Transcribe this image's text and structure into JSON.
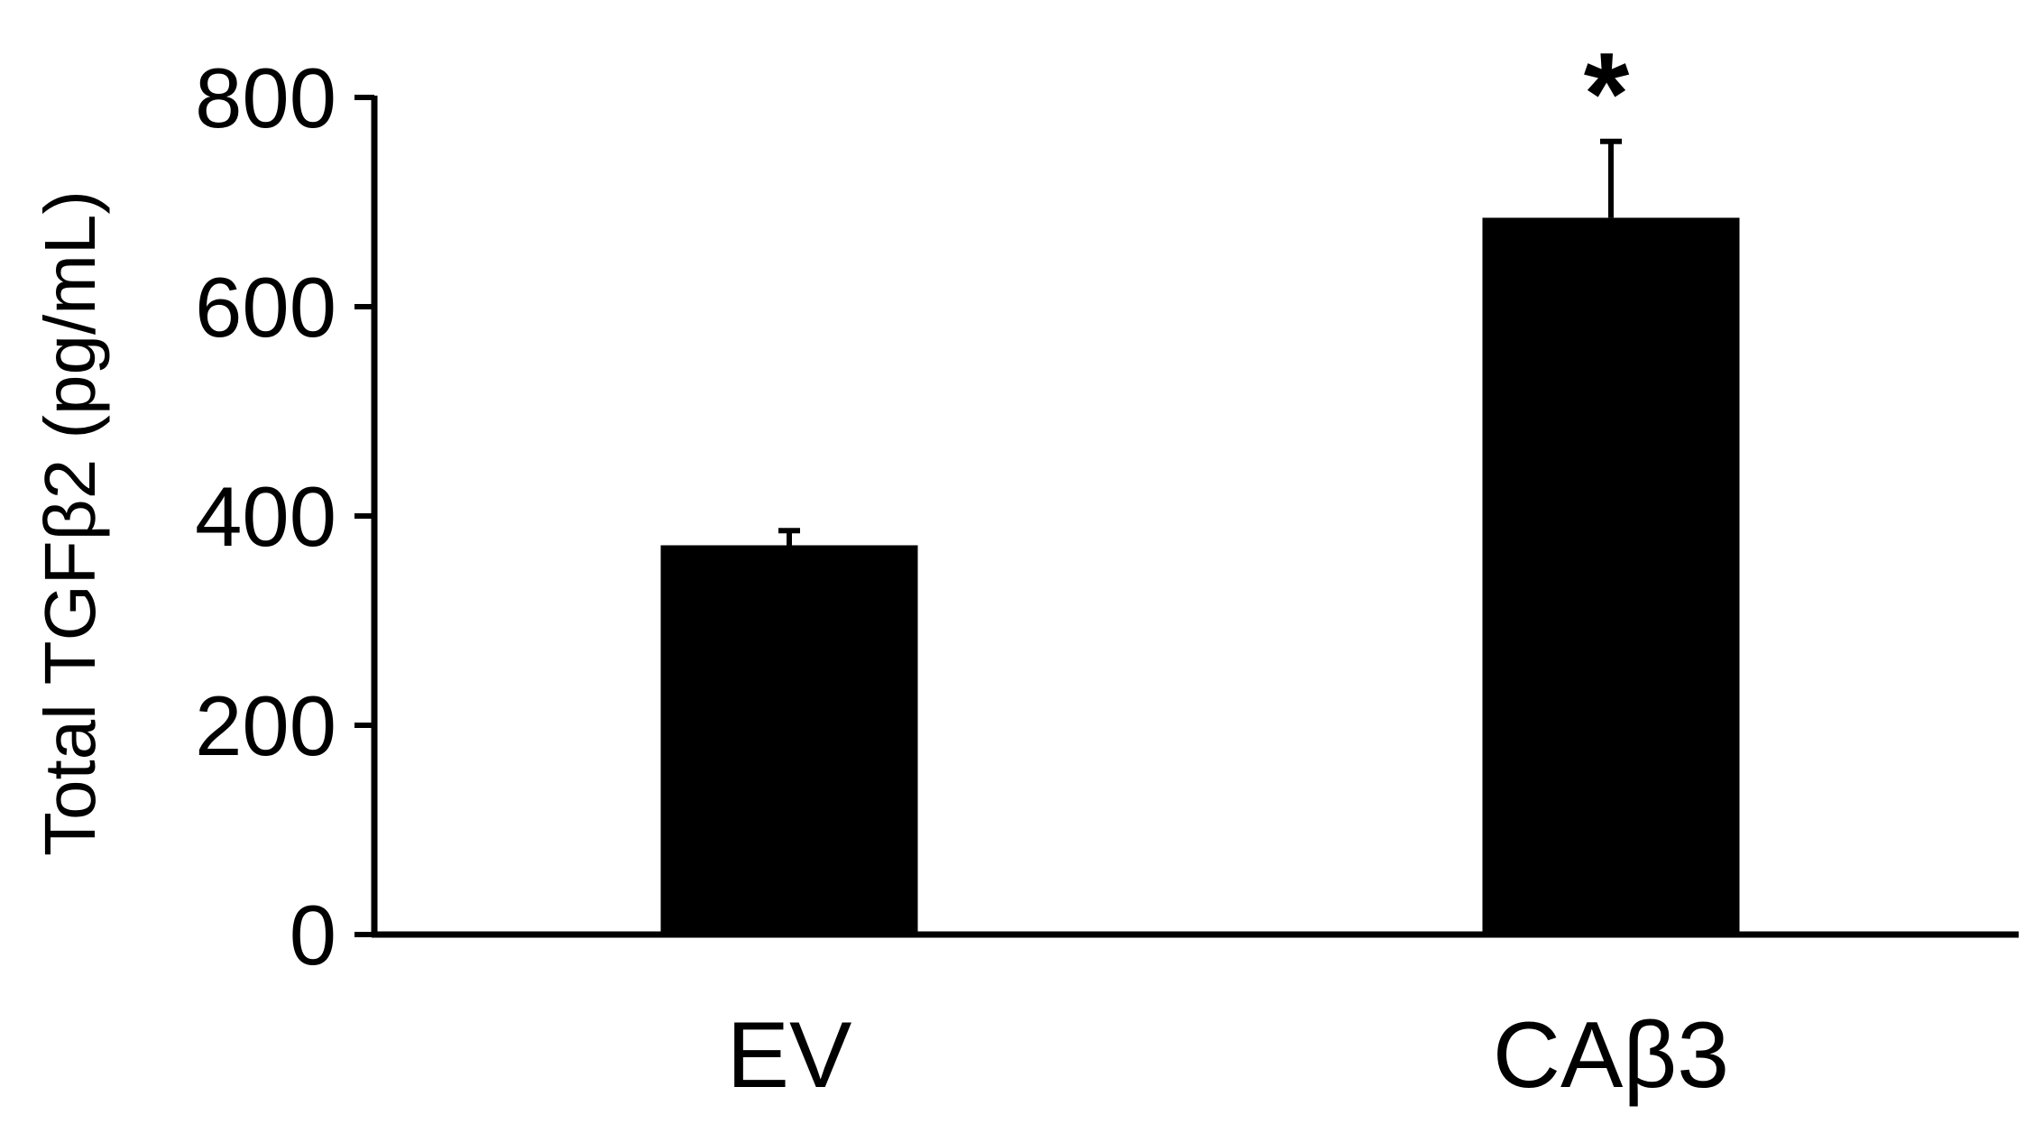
{
  "chart_data": {
    "type": "bar",
    "title": "",
    "xlabel": "",
    "ylabel": "Total TGFβ2 (pg/mL)",
    "categories": [
      "EV",
      "CAβ3"
    ],
    "values": [
      372,
      685
    ],
    "error": [
      14,
      73
    ],
    "annotations": [
      {
        "category": "CAβ3",
        "text": "*"
      }
    ],
    "ylim": [
      0,
      800
    ],
    "yticks": [
      0,
      200,
      400,
      600,
      800
    ],
    "grid": false,
    "legend": "none",
    "bar_color": "#000000"
  }
}
